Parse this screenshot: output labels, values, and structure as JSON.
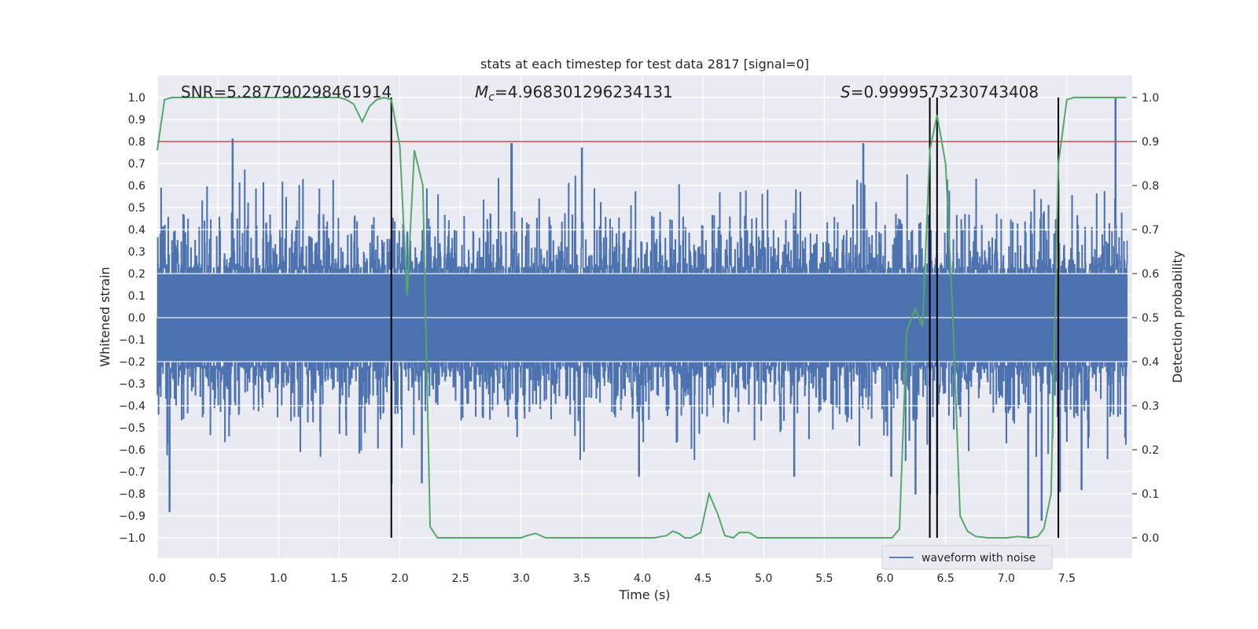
{
  "chart_data": {
    "type": "line",
    "title": "stats at each timestep for test data 2817 [signal=0]",
    "xlabel": "Time (s)",
    "ylabel": "Whitened strain",
    "y2label": "Detection probability",
    "xlim": [
      0.0,
      8.0
    ],
    "ylim": [
      -1.1,
      1.1
    ],
    "y2lim": [
      -0.05,
      1.05
    ],
    "xticks": [
      0.0,
      0.5,
      1.0,
      1.5,
      2.0,
      2.5,
      3.0,
      3.5,
      4.0,
      4.5,
      5.0,
      5.5,
      6.0,
      6.5,
      7.0,
      7.5
    ],
    "xtick_labels": [
      "0.0",
      "0.5",
      "1.0",
      "1.5",
      "2.0",
      "2.5",
      "3.0",
      "3.5",
      "4.0",
      "4.5",
      "5.0",
      "5.5",
      "6.0",
      "6.5",
      "7.0",
      "7.5"
    ],
    "yticks": [
      1.0,
      0.9,
      0.8,
      0.7,
      0.6,
      0.5,
      0.4,
      0.3,
      0.2,
      0.1,
      0.0,
      -0.1,
      -0.2,
      -0.3,
      -0.4,
      -0.5,
      -0.6,
      -0.7,
      -0.8,
      -0.9,
      -1.0
    ],
    "ytick_labels": [
      "1.0",
      "0.9",
      "0.8",
      "0.7",
      "0.6",
      "0.5",
      "0.4",
      "0.3",
      "0.2",
      "0.1",
      "0.0",
      "−0.1",
      "−0.2",
      "−0.3",
      "−0.4",
      "−0.5",
      "−0.6",
      "−0.7",
      "−0.8",
      "−0.9",
      "−1.0"
    ],
    "y2ticks": [
      1.0,
      0.9,
      0.8,
      0.7,
      0.6,
      0.5,
      0.4,
      0.3,
      0.2,
      0.1,
      0.0
    ],
    "y2tick_labels": [
      "1.0",
      "0.9",
      "0.8",
      "0.7",
      "0.6",
      "0.5",
      "0.4",
      "0.3",
      "0.2",
      "0.1",
      "0.0"
    ],
    "annotations": {
      "snr": "SNR=5.287790298461914",
      "mc_symbol": "M",
      "mc_sub": "c",
      "mc_value": "=4.968301296234131",
      "s_symbol": "S",
      "s_value": "=0.9999573230743408"
    },
    "threshold": {
      "y2": 0.9,
      "color": "#c44e52"
    },
    "vertical_lines": [
      1.93,
      6.37,
      6.43,
      7.43
    ],
    "legend": {
      "label": "waveform with noise",
      "placement": "lower-right"
    },
    "series": [
      {
        "name": "waveform with noise",
        "axis": "left",
        "color": "#4c72b0",
        "envelope_peaks": [
          {
            "x": 0.1,
            "y": -0.88
          },
          {
            "x": 0.62,
            "y": 0.81
          },
          {
            "x": 0.72,
            "y": 0.67
          },
          {
            "x": 1.93,
            "y": -0.75
          },
          {
            "x": 2.18,
            "y": -0.75
          },
          {
            "x": 2.92,
            "y": 0.79
          },
          {
            "x": 3.5,
            "y": 0.77
          },
          {
            "x": 3.97,
            "y": -0.72
          },
          {
            "x": 5.25,
            "y": -0.72
          },
          {
            "x": 5.82,
            "y": 0.79
          },
          {
            "x": 6.05,
            "y": -0.72
          },
          {
            "x": 6.25,
            "y": -0.8
          },
          {
            "x": 6.37,
            "y": -0.8
          },
          {
            "x": 6.43,
            "y": -0.8
          },
          {
            "x": 7.18,
            "y": -1.0
          },
          {
            "x": 7.29,
            "y": -0.92
          },
          {
            "x": 7.44,
            "y": -0.79
          },
          {
            "x": 7.62,
            "y": -0.78
          },
          {
            "x": 7.9,
            "y": 1.0
          }
        ]
      },
      {
        "name": "Detection probability",
        "axis": "right",
        "color": "#55a868",
        "x": [
          0.0,
          0.06,
          0.12,
          0.3,
          0.6,
          0.9,
          1.2,
          1.5,
          1.56,
          1.62,
          1.69,
          1.75,
          1.81,
          1.87,
          1.93,
          2.0,
          2.06,
          2.12,
          2.19,
          2.25,
          2.31,
          2.4,
          2.6,
          2.8,
          3.0,
          3.05,
          3.12,
          3.2,
          3.3,
          3.5,
          3.7,
          3.8,
          4.0,
          4.1,
          4.2,
          4.25,
          4.3,
          4.35,
          4.4,
          4.48,
          4.55,
          4.62,
          4.68,
          4.75,
          4.8,
          4.88,
          4.95,
          5.0,
          5.2,
          5.5,
          5.8,
          6.0,
          6.06,
          6.12,
          6.18,
          6.25,
          6.31,
          6.37,
          6.43,
          6.5,
          6.56,
          6.62,
          6.68,
          6.75,
          6.85,
          7.0,
          7.1,
          7.2,
          7.26,
          7.31,
          7.37,
          7.43,
          7.5,
          7.56,
          7.62,
          7.8,
          7.99
        ],
        "y": [
          0.88,
          0.995,
          1.0,
          1.0,
          1.0,
          1.0,
          1.0,
          1.0,
          0.995,
          0.985,
          0.945,
          0.98,
          0.995,
          1.0,
          0.995,
          0.89,
          0.55,
          0.88,
          0.8,
          0.025,
          0.0,
          0.0,
          0.0,
          0.0,
          0.0,
          0.005,
          0.01,
          0.0,
          0.0,
          0.0,
          0.0,
          0.0,
          0.0,
          0.0,
          0.005,
          0.015,
          0.01,
          0.0,
          0.0,
          0.012,
          0.1,
          0.055,
          0.005,
          0.0,
          0.012,
          0.012,
          0.0,
          0.0,
          0.0,
          0.0,
          0.0,
          0.0,
          0.0,
          0.02,
          0.47,
          0.52,
          0.48,
          0.88,
          0.96,
          0.85,
          0.5,
          0.05,
          0.015,
          0.003,
          0.0,
          0.0,
          0.003,
          0.0,
          0.003,
          0.02,
          0.1,
          0.85,
          0.995,
          1.0,
          1.0,
          1.0,
          1.0
        ]
      }
    ]
  }
}
